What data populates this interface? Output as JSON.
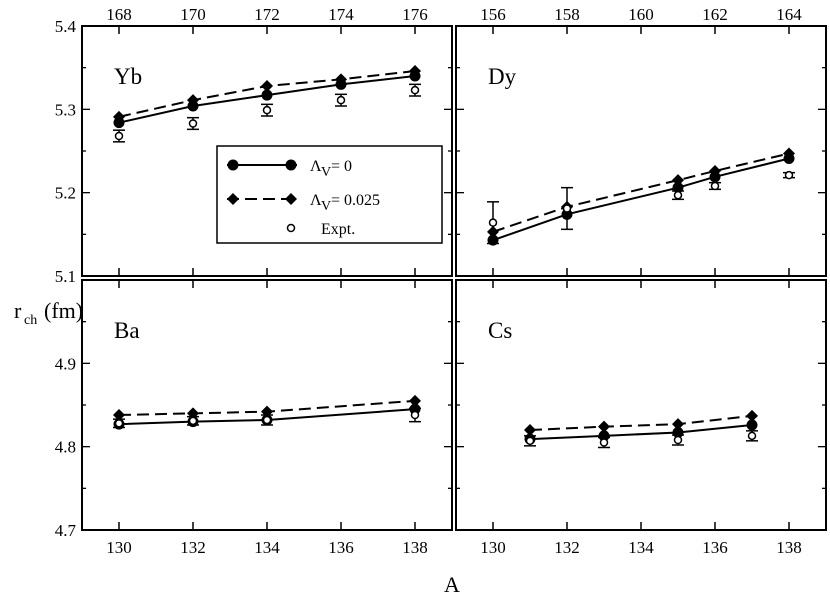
{
  "chart_data": {
    "type": "scatter",
    "xlabel": "A",
    "ylabel": "r",
    "ylabel_sub": "ch",
    "ylabel_unit": "(fm)",
    "legend": {
      "placement": "top-panel-center",
      "entries": [
        {
          "label_main": "Λ",
          "label_sub": "V",
          "label_rest": "= 0",
          "marker": "circle",
          "line": "solid"
        },
        {
          "label_main": "Λ",
          "label_sub": "V",
          "label_rest": "= 0.025",
          "marker": "diamond",
          "line": "dashed"
        },
        {
          "label_main": "Expt.",
          "label_sub": "",
          "label_rest": "",
          "marker": "open-circle",
          "line": "none"
        }
      ]
    },
    "top_yticks": [
      "5.1",
      "5.2",
      "5.3",
      "5.4"
    ],
    "bottom_yticks": [
      "4.7",
      "4.8",
      "4.9"
    ],
    "panels": [
      {
        "id": "yb",
        "label": "Yb",
        "row": "top",
        "col": "left",
        "xrange": [
          167,
          177
        ],
        "yrange": [
          5.1,
          5.4
        ],
        "xaxis": "top",
        "xticks": [
          "168",
          "170",
          "172",
          "174",
          "176"
        ],
        "x": [
          168,
          170,
          172,
          174,
          176
        ],
        "lambda0": [
          5.284,
          5.304,
          5.317,
          5.33,
          5.34
        ],
        "lambda025": [
          5.291,
          5.311,
          5.328,
          5.336,
          5.346
        ],
        "expt": [
          5.268,
          5.283,
          5.299,
          5.311,
          5.323
        ],
        "expt_err": [
          0.007,
          0.007,
          0.007,
          0.007,
          0.007
        ]
      },
      {
        "id": "dy",
        "label": "Dy",
        "row": "top",
        "col": "right",
        "xrange": [
          155,
          165
        ],
        "yrange": [
          5.1,
          5.4
        ],
        "xaxis": "top",
        "xticks": [
          "156",
          "158",
          "160",
          "162",
          "164"
        ],
        "x": [
          156,
          158,
          161,
          162,
          164
        ],
        "lambda0": [
          5.143,
          5.174,
          5.206,
          5.219,
          5.241
        ],
        "lambda025": [
          5.153,
          5.183,
          5.215,
          5.226,
          5.247
        ],
        "expt": [
          5.164,
          5.181,
          5.197,
          5.208,
          5.221
        ],
        "expt_err": [
          0.025,
          0.025,
          0.005,
          0.004,
          0.003
        ]
      },
      {
        "id": "ba",
        "label": "Ba",
        "row": "bottom",
        "col": "left",
        "xrange": [
          129,
          139
        ],
        "yrange": [
          4.7,
          5.0
        ],
        "xaxis": "bottom",
        "xticks": [
          "130",
          "132",
          "134",
          "136",
          "138"
        ],
        "x": [
          130,
          132,
          134,
          138
        ],
        "lambda0": [
          4.827,
          4.83,
          4.832,
          4.845
        ],
        "lambda025": [
          4.838,
          4.84,
          4.842,
          4.855
        ],
        "expt": [
          4.828,
          4.831,
          4.832,
          4.838
        ],
        "expt_err": [
          0.005,
          0.005,
          0.006,
          0.008
        ]
      },
      {
        "id": "cs",
        "label": "Cs",
        "row": "bottom",
        "col": "right",
        "xrange": [
          129,
          139
        ],
        "yrange": [
          4.7,
          5.0
        ],
        "xaxis": "bottom",
        "xticks": [
          "130",
          "132",
          "134",
          "136",
          "138"
        ],
        "x": [
          131,
          133,
          135,
          137
        ],
        "lambda0": [
          4.809,
          4.813,
          4.817,
          4.826
        ],
        "lambda025": [
          4.82,
          4.824,
          4.827,
          4.837
        ],
        "expt": [
          4.807,
          4.805,
          4.808,
          4.813
        ],
        "expt_err": [
          0.006,
          0.006,
          0.006,
          0.006
        ]
      }
    ]
  }
}
